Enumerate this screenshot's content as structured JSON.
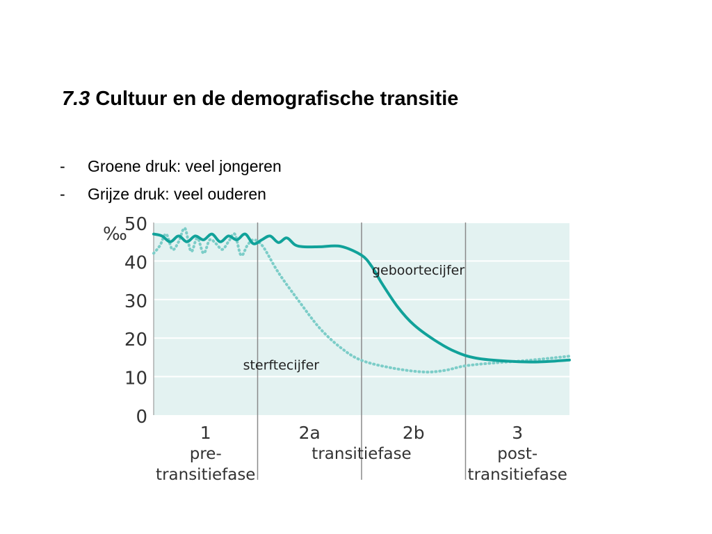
{
  "slide": {
    "title_number": "7.3",
    "title_text": "Cultuur en de demografische transitie",
    "bullets": [
      {
        "dash": "-",
        "text": "Groene druk: veel jongeren"
      },
      {
        "dash": "-",
        "text": "Grijze druk: veel ouderen"
      }
    ]
  },
  "chart_data": {
    "type": "line",
    "ylabel": "‰",
    "ylim": [
      0,
      50
    ],
    "yticks": [
      0,
      10,
      20,
      30,
      40,
      50
    ],
    "xlim": [
      0,
      4
    ],
    "grid": true,
    "phase_boundaries": [
      1,
      2,
      3
    ],
    "phases": [
      {
        "number": "1",
        "name_lines": [
          "pre-",
          "transitiefase"
        ]
      },
      {
        "number": "2a",
        "name_lines": [
          "transitiefase"
        ]
      },
      {
        "number": "2b",
        "name_lines": []
      },
      {
        "number": "3",
        "name_lines": [
          "post-",
          "transitiefase"
        ]
      }
    ],
    "series": [
      {
        "name": "geboortecijfer",
        "style": "solid",
        "color": "#11a29a",
        "x": [
          0,
          0.08,
          0.16,
          0.24,
          0.32,
          0.4,
          0.48,
          0.56,
          0.64,
          0.72,
          0.8,
          0.88,
          0.96,
          1.04,
          1.12,
          1.2,
          1.28,
          1.36,
          1.44,
          1.6,
          1.8,
          2.0,
          2.1,
          2.2,
          2.35,
          2.5,
          2.7,
          2.9,
          3.1,
          3.4,
          3.7,
          4.0
        ],
        "y": [
          47,
          46.5,
          45,
          46.5,
          45,
          46.5,
          45.5,
          47,
          45,
          46.5,
          45.5,
          47,
          44.5,
          45.5,
          46.5,
          44.8,
          46,
          44.2,
          43.7,
          43.7,
          43.8,
          41.5,
          38.5,
          34,
          28,
          23.5,
          19.5,
          16.5,
          14.8,
          14,
          13.8,
          14.3
        ]
      },
      {
        "name": "sterftecijfer",
        "style": "dotted",
        "color": "#7ccdc8",
        "x": [
          0,
          0.06,
          0.12,
          0.18,
          0.24,
          0.3,
          0.36,
          0.42,
          0.48,
          0.54,
          0.6,
          0.66,
          0.72,
          0.78,
          0.84,
          0.9,
          0.96,
          1.05,
          1.2,
          1.4,
          1.6,
          1.8,
          2.0,
          2.3,
          2.6,
          2.8,
          3.0,
          3.3,
          3.6,
          4.0
        ],
        "y": [
          42,
          44,
          47,
          43,
          45,
          48.5,
          42.5,
          46,
          42,
          45.5,
          44.5,
          43,
          45,
          47,
          41.5,
          44,
          45.5,
          43.8,
          37,
          29.5,
          22.5,
          17.5,
          14.2,
          12.2,
          11.2,
          11.6,
          12.8,
          13.6,
          14.2,
          15.3
        ]
      }
    ],
    "annotations": [
      {
        "text": "geboortecijfer",
        "x": 2.1,
        "y": 36.5
      },
      {
        "text": "sterftecijfer",
        "x": 0.86,
        "y": 11.8
      }
    ]
  }
}
